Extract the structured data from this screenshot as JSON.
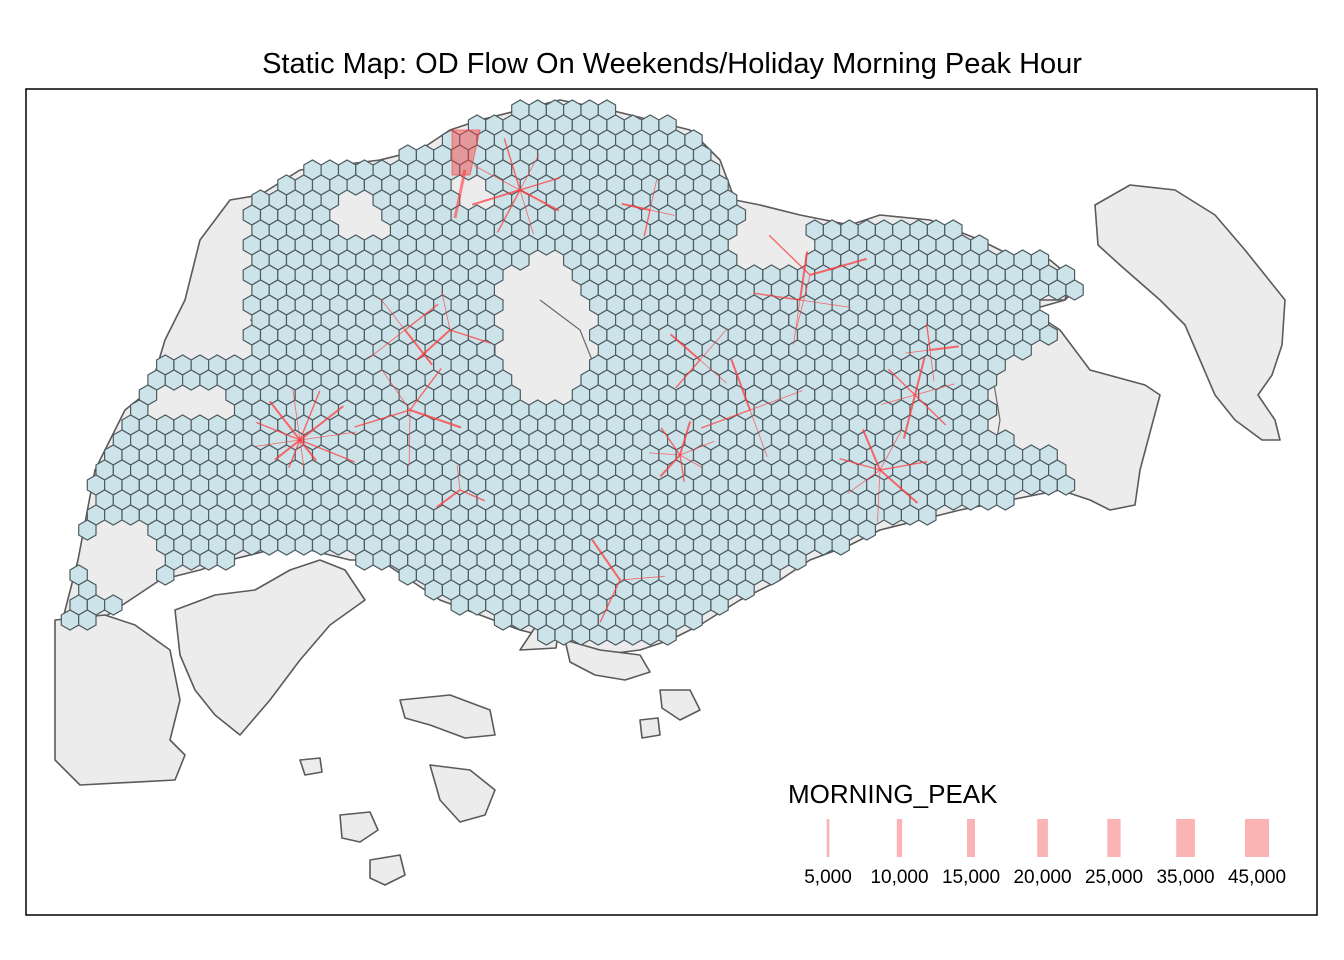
{
  "title": "Static Map: OD Flow On Weekends/Holiday Morning Peak Hour",
  "legend": {
    "title": "MORNING_PEAK",
    "items": [
      {
        "label": "5,000",
        "value": 5000
      },
      {
        "label": "10,000",
        "value": 10000
      },
      {
        "label": "15,000",
        "value": 15000
      },
      {
        "label": "20,000",
        "value": 20000
      },
      {
        "label": "25,000",
        "value": 25000
      },
      {
        "label": "35,000",
        "value": 35000
      },
      {
        "label": "45,000",
        "value": 45000
      }
    ]
  },
  "colors": {
    "land_fill": "#ececec",
    "land_stroke": "#5a5a5a",
    "hex_fill": "#cde3ea",
    "hex_stroke": "#4e5b61",
    "flow": "#ff3b3b",
    "legend_swatch": "#fbb4b4",
    "frame": "#000000"
  }
}
